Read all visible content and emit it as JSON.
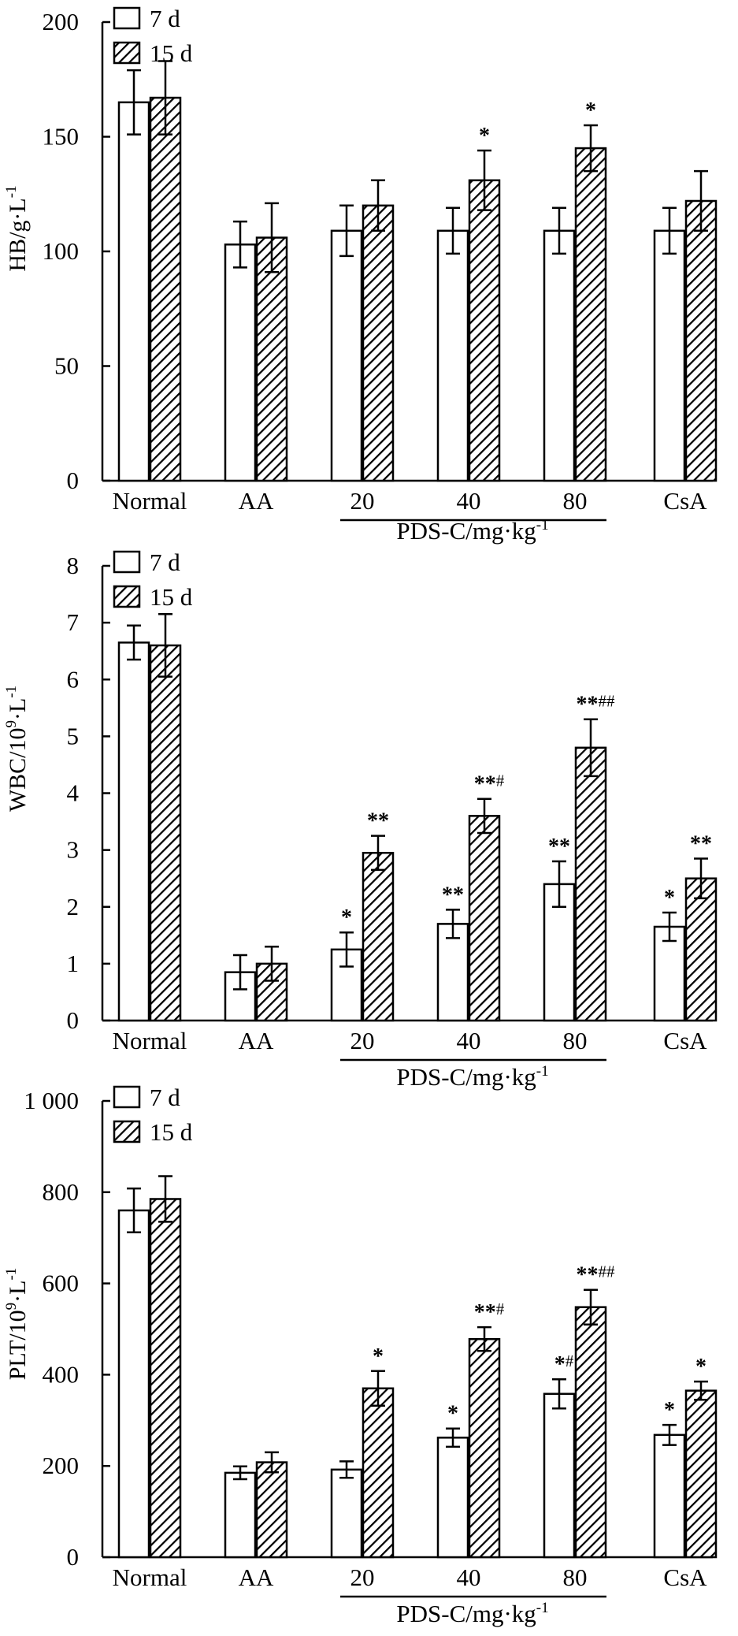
{
  "chart_data": [
    {
      "type": "bar",
      "ylabel": "HB/g·L",
      "ylabel_sup": "-1",
      "yticks": [
        "0",
        "50",
        "100",
        "150",
        "200"
      ],
      "ylim": [
        0,
        200
      ],
      "categories": [
        "Normal",
        "AA",
        "20",
        "40",
        "80",
        "CsA"
      ],
      "group_label": "PDS-C/mg·kg",
      "group_label_sup": "-1",
      "series": [
        {
          "name": "7 d",
          "values": [
            165,
            103,
            109,
            109,
            109,
            109
          ],
          "errors": [
            14,
            10,
            11,
            10,
            10,
            10
          ],
          "annotations": [
            "",
            "",
            "",
            "",
            "",
            ""
          ],
          "hash": [
            "",
            "",
            "",
            "",
            "",
            ""
          ]
        },
        {
          "name": "15 d",
          "values": [
            167,
            106,
            120,
            131,
            145,
            122
          ],
          "errors": [
            16,
            15,
            11,
            13,
            10,
            13
          ],
          "annotations": [
            "",
            "",
            "",
            "*",
            "*",
            ""
          ],
          "hash": [
            "",
            "",
            "",
            "",
            "",
            ""
          ]
        }
      ]
    },
    {
      "type": "bar",
      "ylabel": "WBC/10",
      "ylabel_exp": "9",
      "ylabel_unit": "·L",
      "ylabel_sup": "-1",
      "yticks": [
        "0",
        "1",
        "2",
        "3",
        "4",
        "5",
        "6",
        "7",
        "8"
      ],
      "ylim": [
        0,
        8
      ],
      "categories": [
        "Normal",
        "AA",
        "20",
        "40",
        "80",
        "CsA"
      ],
      "group_label": "PDS-C/mg·kg",
      "group_label_sup": "-1",
      "series": [
        {
          "name": "7 d",
          "values": [
            6.65,
            0.85,
            1.25,
            1.7,
            2.4,
            1.65
          ],
          "errors": [
            0.3,
            0.3,
            0.3,
            0.25,
            0.4,
            0.25
          ],
          "annotations": [
            "",
            "",
            "*",
            "**",
            "**",
            "*"
          ],
          "hash": [
            "",
            "",
            "",
            "",
            "",
            ""
          ]
        },
        {
          "name": "15 d",
          "values": [
            6.6,
            1.0,
            2.95,
            3.6,
            4.8,
            2.5
          ],
          "errors": [
            0.55,
            0.3,
            0.3,
            0.3,
            0.5,
            0.35
          ],
          "annotations": [
            "",
            "",
            "**",
            "**",
            "**",
            "**"
          ],
          "hash": [
            "",
            "",
            "",
            "#",
            "##",
            ""
          ]
        }
      ]
    },
    {
      "type": "bar",
      "ylabel": "PLT/10",
      "ylabel_exp": "9",
      "ylabel_unit": "·L",
      "ylabel_sup": "-1",
      "yticks": [
        "0",
        "200",
        "400",
        "600",
        "800",
        "1 000"
      ],
      "ylim": [
        0,
        1000
      ],
      "categories": [
        "Normal",
        "AA",
        "20",
        "40",
        "80",
        "CsA"
      ],
      "group_label": "PDS-C/mg·kg",
      "group_label_sup": "-1",
      "series": [
        {
          "name": "7 d",
          "values": [
            760,
            185,
            192,
            262,
            358,
            268
          ],
          "errors": [
            48,
            14,
            18,
            20,
            32,
            22
          ],
          "annotations": [
            "",
            "",
            "",
            "*",
            "*",
            "*"
          ],
          "hash": [
            "",
            "",
            "",
            "",
            "#",
            ""
          ]
        },
        {
          "name": "15 d",
          "values": [
            785,
            208,
            370,
            478,
            548,
            365
          ],
          "errors": [
            50,
            22,
            38,
            26,
            38,
            20
          ],
          "annotations": [
            "",
            "",
            "*",
            "**",
            "**",
            "*"
          ],
          "hash": [
            "",
            "",
            "",
            "#",
            "##",
            ""
          ]
        }
      ]
    }
  ]
}
